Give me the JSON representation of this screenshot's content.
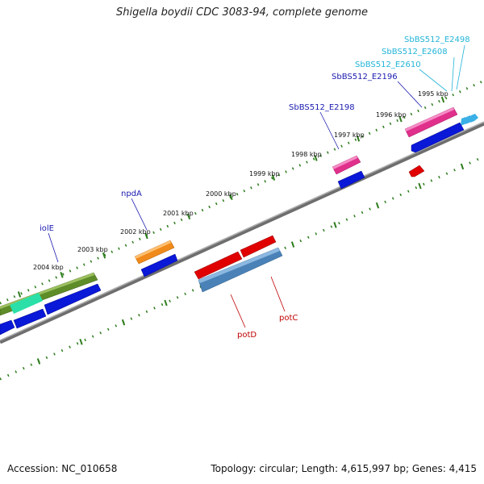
{
  "title": "Shigella boydii CDC 3083-94, complete genome",
  "footer": {
    "accession": "Accession: NC_010658",
    "summary": "Topology: circular; Length: 4,615,997 bp; Genes: 4,415"
  },
  "colors": {
    "backbone": "#808080",
    "tick": "#2e7d1e",
    "label_forward": "#1a1ab0",
    "label_reverse": "#c00000",
    "label_cyan": "#22b4d8"
  },
  "scale_labels": [
    "1995 kbp",
    "1996 kbp",
    "1997 kbp",
    "1998 kbp",
    "1999 kbp",
    "2000 kbp",
    "2001 kbp",
    "2002 kbp",
    "2003 kbp",
    "2004 kbp"
  ],
  "labels": {
    "SbBS512_E2498": "SbBS512_E2498",
    "SbBS512_E2608": "SbBS512_E2608",
    "SbBS512_E2610": "SbBS512_E2610",
    "SbBS512_E2196": "SbBS512_E2196",
    "SbBS512_E2198": "SbBS512_E2198",
    "npdA": "npdA",
    "iolE": "iolE",
    "potD": "potD",
    "potC": "potC"
  }
}
